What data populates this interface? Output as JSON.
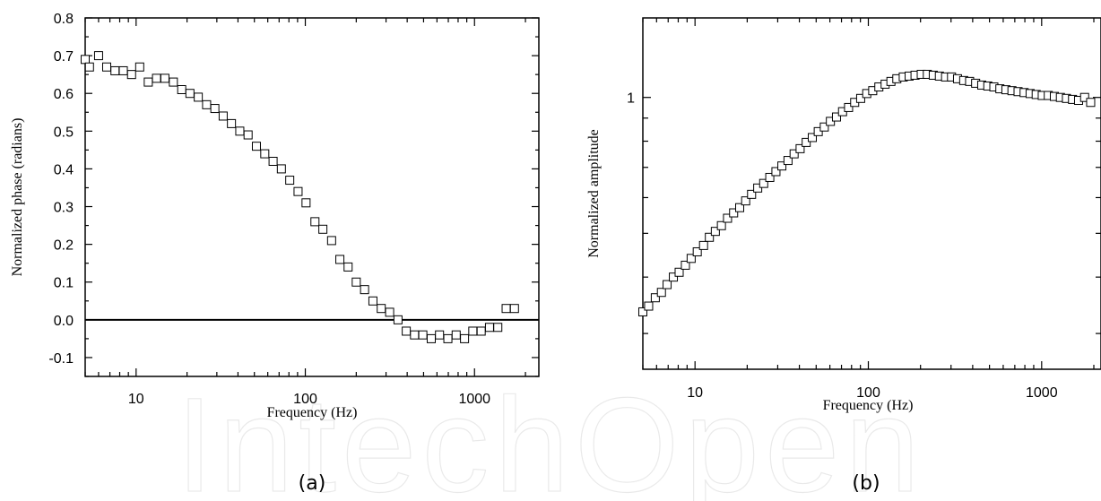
{
  "watermark_text": "IntechOpen",
  "chart_data": [
    {
      "type": "scatter",
      "panel_label": "(a)",
      "xlabel": "Frequency (Hz)",
      "ylabel": "Normalized phase  (radians)",
      "xscale": "log",
      "xlim": [
        5,
        2400
      ],
      "ylim": [
        -0.15,
        0.8
      ],
      "xticks": [
        10,
        100,
        1000
      ],
      "xtick_labels": [
        "10",
        "100",
        "1000"
      ],
      "yticks": [
        -0.1,
        0.0,
        0.1,
        0.2,
        0.3,
        0.4,
        0.5,
        0.6,
        0.7,
        0.8
      ],
      "ytick_labels": [
        "-0.1",
        "0.0",
        "0.1",
        "0.2",
        "0.3",
        "0.4",
        "0.5",
        "0.6",
        "0.7",
        "0.8"
      ],
      "reference_line_y": 0.0,
      "marker": "open-square",
      "grid": false,
      "x": [
        5,
        5.3,
        6,
        6.7,
        7.5,
        8.4,
        9.4,
        10.5,
        11.8,
        13.2,
        14.8,
        16.6,
        18.6,
        20.8,
        23.3,
        26.1,
        29.2,
        32.7,
        36.6,
        41,
        45.9,
        51.4,
        57.6,
        64.5,
        72.2,
        80.9,
        90.6,
        101,
        114,
        127,
        143,
        160,
        179,
        200,
        224,
        251,
        281,
        315,
        353,
        395,
        442,
        495,
        555,
        621,
        696,
        779,
        873,
        977,
        1095,
        1226,
        1373,
        1538,
        1722
      ],
      "y": [
        0.69,
        0.67,
        0.7,
        0.67,
        0.66,
        0.66,
        0.65,
        0.67,
        0.63,
        0.64,
        0.64,
        0.63,
        0.61,
        0.6,
        0.59,
        0.57,
        0.56,
        0.54,
        0.52,
        0.5,
        0.49,
        0.46,
        0.44,
        0.42,
        0.4,
        0.37,
        0.34,
        0.31,
        0.26,
        0.24,
        0.21,
        0.16,
        0.14,
        0.1,
        0.08,
        0.05,
        0.03,
        0.02,
        0.0,
        -0.03,
        -0.04,
        -0.04,
        -0.05,
        -0.04,
        -0.05,
        -0.04,
        -0.05,
        -0.03,
        -0.03,
        -0.02,
        -0.02,
        0.03,
        0.03
      ]
    },
    {
      "type": "scatter",
      "panel_label": "(b)",
      "xlabel": "Frequency (Hz)",
      "ylabel": "Normalized amplitude",
      "xscale": "log",
      "yscale": "log",
      "xlim": [
        5,
        2200
      ],
      "ylim": [
        0.25,
        1.5
      ],
      "xticks": [
        10,
        100,
        1000
      ],
      "xtick_labels": [
        "10",
        "100",
        "1000"
      ],
      "yticks": [
        1
      ],
      "ytick_labels": [
        "1"
      ],
      "marker": "open-square",
      "grid": false,
      "x": [
        5,
        5.4,
        5.9,
        6.4,
        6.9,
        7.5,
        8.1,
        8.8,
        9.5,
        10.3,
        11.2,
        12.1,
        13.1,
        14.2,
        15.4,
        16.7,
        18.1,
        19.6,
        21.2,
        23,
        24.9,
        27,
        29.3,
        31.7,
        34.4,
        37.3,
        40.4,
        43.8,
        47.5,
        51.4,
        55.7,
        60.4,
        65.5,
        71,
        76.9,
        83.4,
        90.3,
        97.9,
        106,
        115,
        125,
        135,
        146,
        159,
        172,
        186,
        202,
        219,
        237,
        257,
        279,
        302,
        327,
        355,
        384,
        416,
        451,
        489,
        530,
        574,
        622,
        674,
        731,
        792,
        858,
        930,
        1008,
        1092,
        1184,
        1283,
        1390,
        1507,
        1633,
        1770,
        1918
      ],
      "y": [
        0.335,
        0.345,
        0.36,
        0.37,
        0.385,
        0.4,
        0.41,
        0.425,
        0.44,
        0.455,
        0.47,
        0.49,
        0.505,
        0.52,
        0.54,
        0.555,
        0.57,
        0.59,
        0.61,
        0.63,
        0.645,
        0.665,
        0.685,
        0.705,
        0.725,
        0.75,
        0.77,
        0.795,
        0.815,
        0.84,
        0.86,
        0.885,
        0.905,
        0.93,
        0.95,
        0.975,
        0.995,
        1.02,
        1.035,
        1.055,
        1.07,
        1.085,
        1.1,
        1.11,
        1.115,
        1.12,
        1.125,
        1.125,
        1.12,
        1.115,
        1.11,
        1.11,
        1.1,
        1.09,
        1.085,
        1.075,
        1.065,
        1.06,
        1.055,
        1.045,
        1.04,
        1.035,
        1.03,
        1.025,
        1.02,
        1.015,
        1.01,
        1.01,
        1.005,
        1.0,
        0.995,
        0.99,
        0.985,
        1.0,
        0.975
      ]
    }
  ]
}
